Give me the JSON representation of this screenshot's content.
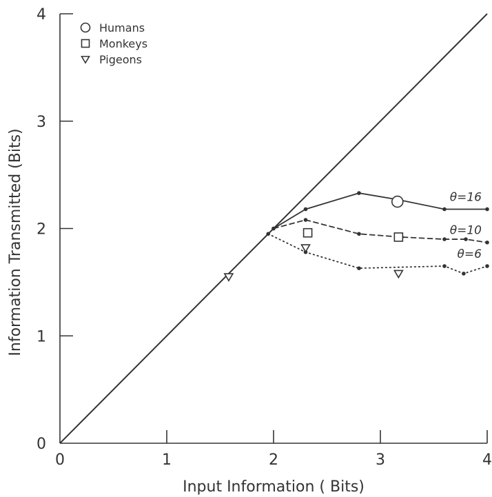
{
  "chart_data": {
    "type": "line",
    "xlabel": "Input Information ( Bits)",
    "ylabel": "Information Transmitted (Bits)",
    "xlim": [
      0,
      4
    ],
    "ylim": [
      0,
      4
    ],
    "xticks": [
      "0",
      "1",
      "2",
      "3",
      "4"
    ],
    "yticks": [
      "0",
      "1",
      "2",
      "3",
      "4"
    ],
    "grid": false,
    "legend_placement": "top-left",
    "legend": [
      {
        "marker": "circle",
        "label": "Humans"
      },
      {
        "marker": "square",
        "label": "Monkeys"
      },
      {
        "marker": "triangle-down",
        "label": "Pigeons"
      }
    ],
    "identity_line": {
      "x": [
        0,
        4
      ],
      "y": [
        0,
        4
      ]
    },
    "series": [
      {
        "name": "θ=16",
        "style": "solid",
        "x": [
          2.0,
          2.3,
          2.8,
          3.16,
          3.6,
          4.0
        ],
        "y": [
          2.0,
          2.18,
          2.33,
          2.27,
          2.18,
          2.18
        ]
      },
      {
        "name": "θ=10",
        "style": "dashed",
        "x": [
          2.0,
          2.3,
          2.8,
          3.2,
          3.6,
          3.8,
          4.0
        ],
        "y": [
          2.0,
          2.08,
          1.95,
          1.92,
          1.9,
          1.9,
          1.87
        ]
      },
      {
        "name": "θ=6",
        "style": "dotted",
        "x": [
          1.95,
          2.3,
          2.8,
          3.6,
          3.78,
          4.0
        ],
        "y": [
          1.95,
          1.78,
          1.63,
          1.65,
          1.58,
          1.65
        ]
      }
    ],
    "points": [
      {
        "group": "Humans",
        "marker": "circle",
        "x": 3.16,
        "y": 2.25
      },
      {
        "group": "Monkeys",
        "marker": "square",
        "x": 2.32,
        "y": 1.96
      },
      {
        "group": "Monkeys",
        "marker": "square",
        "x": 3.17,
        "y": 1.92
      },
      {
        "group": "Pigeons",
        "marker": "triangle-down",
        "x": 1.58,
        "y": 1.55
      },
      {
        "group": "Pigeons",
        "marker": "triangle-down",
        "x": 2.3,
        "y": 1.82
      },
      {
        "group": "Pigeons",
        "marker": "triangle-down",
        "x": 3.17,
        "y": 1.58
      }
    ]
  }
}
